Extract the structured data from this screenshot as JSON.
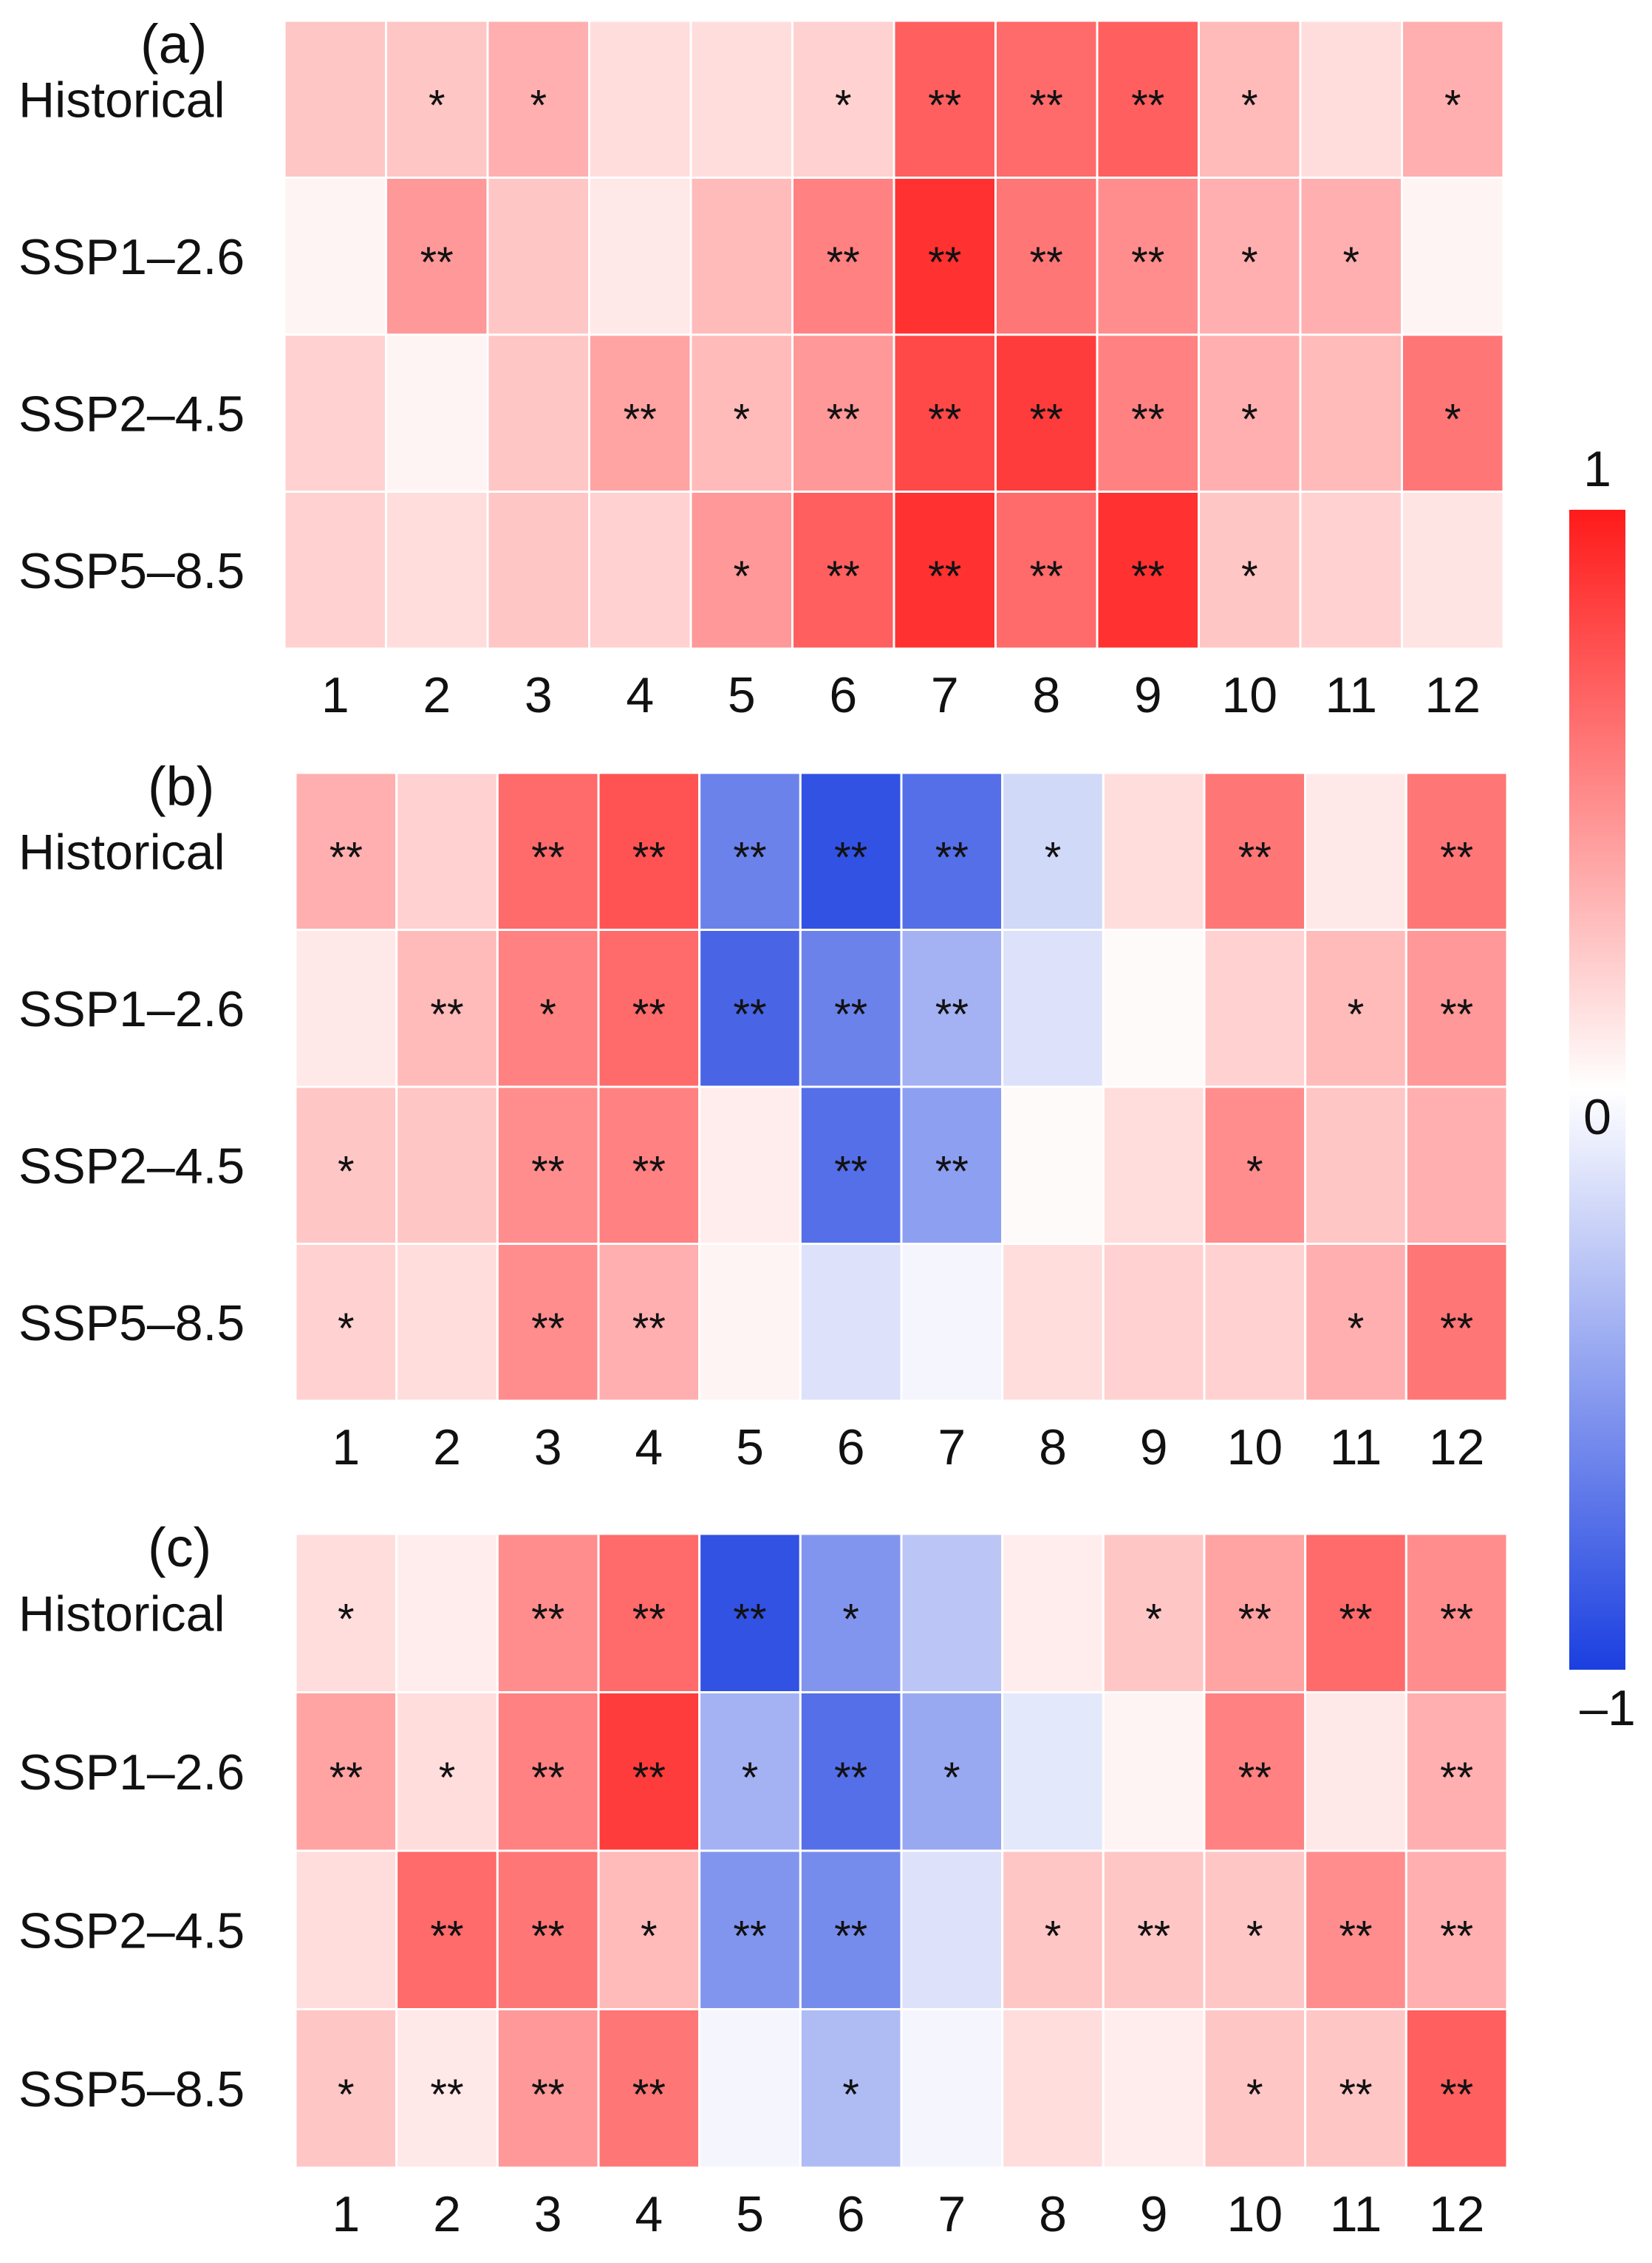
{
  "chart_data": [
    {
      "type": "heatmap",
      "panel_label": "(a)",
      "x": [
        "1",
        "2",
        "3",
        "4",
        "5",
        "6",
        "7",
        "8",
        "9",
        "10",
        "11",
        "12"
      ],
      "y": [
        "Historical",
        "SSP1–2.6",
        "SSP2–4.5",
        "SSP5–8.5"
      ],
      "values": [
        [
          0.25,
          0.25,
          0.35,
          0.15,
          0.15,
          0.2,
          0.7,
          0.65,
          0.7,
          0.3,
          0.15,
          0.35
        ],
        [
          0.05,
          0.45,
          0.25,
          0.1,
          0.3,
          0.55,
          0.9,
          0.6,
          0.5,
          0.35,
          0.35,
          0.05
        ],
        [
          0.2,
          0.05,
          0.25,
          0.4,
          0.3,
          0.45,
          0.8,
          0.85,
          0.55,
          0.35,
          0.3,
          0.6
        ],
        [
          0.2,
          0.15,
          0.25,
          0.2,
          0.45,
          0.7,
          0.9,
          0.65,
          0.9,
          0.25,
          0.2,
          0.12
        ]
      ],
      "significance": [
        [
          "",
          "*",
          "*",
          "",
          "",
          "*",
          "**",
          "**",
          "**",
          "*",
          "",
          "*"
        ],
        [
          "",
          "**",
          "",
          "",
          "",
          "**",
          "**",
          "**",
          "**",
          "*",
          "*",
          ""
        ],
        [
          "",
          "",
          "",
          "**",
          "*",
          "**",
          "**",
          "**",
          "**",
          "*",
          "",
          "*"
        ],
        [
          "",
          "",
          "",
          "",
          "*",
          "**",
          "**",
          "**",
          "**",
          "*",
          "",
          ""
        ]
      ],
      "vmin": -1,
      "vmax": 1
    },
    {
      "type": "heatmap",
      "panel_label": "(b)",
      "x": [
        "1",
        "2",
        "3",
        "4",
        "5",
        "6",
        "7",
        "8",
        "9",
        "10",
        "11",
        "12"
      ],
      "y": [
        "Historical",
        "SSP1–2.6",
        "SSP2–4.5",
        "SSP5–8.5"
      ],
      "values": [
        [
          0.35,
          0.2,
          0.65,
          0.75,
          -0.65,
          -0.9,
          -0.75,
          -0.2,
          0.15,
          0.6,
          0.1,
          0.6
        ],
        [
          0.1,
          0.3,
          0.55,
          0.65,
          -0.8,
          -0.65,
          -0.4,
          -0.15,
          0.02,
          0.2,
          0.3,
          0.45
        ],
        [
          0.25,
          0.25,
          0.5,
          0.55,
          0.08,
          -0.75,
          -0.5,
          0.02,
          0.15,
          0.5,
          0.25,
          0.35
        ],
        [
          0.2,
          0.15,
          0.5,
          0.35,
          0.05,
          -0.15,
          -0.05,
          0.15,
          0.2,
          0.2,
          0.35,
          0.6
        ]
      ],
      "significance": [
        [
          "**",
          "",
          "**",
          "**",
          "**",
          "**",
          "**",
          "*",
          "",
          "**",
          "",
          "**"
        ],
        [
          "",
          "**",
          "*",
          "**",
          "**",
          "**",
          "**",
          "",
          "",
          "",
          "*",
          "**"
        ],
        [
          "*",
          "",
          "**",
          "**",
          "",
          "**",
          "**",
          "",
          "",
          "*",
          "",
          ""
        ],
        [
          "*",
          "",
          "**",
          "**",
          "",
          "",
          "",
          "",
          "",
          "",
          "*",
          "**"
        ]
      ],
      "vmin": -1,
      "vmax": 1
    },
    {
      "type": "heatmap",
      "panel_label": "(c)",
      "x": [
        "1",
        "2",
        "3",
        "4",
        "5",
        "6",
        "7",
        "8",
        "9",
        "10",
        "11",
        "12"
      ],
      "y": [
        "Historical",
        "SSP1–2.6",
        "SSP2–4.5",
        "SSP5–8.5"
      ],
      "values": [
        [
          0.15,
          0.08,
          0.5,
          0.65,
          -0.9,
          -0.55,
          -0.3,
          0.08,
          0.25,
          0.4,
          0.65,
          0.5
        ],
        [
          0.4,
          0.15,
          0.55,
          0.85,
          -0.4,
          -0.75,
          -0.45,
          -0.12,
          0.05,
          0.55,
          0.1,
          0.35
        ],
        [
          0.15,
          0.65,
          0.6,
          0.3,
          -0.55,
          -0.6,
          -0.15,
          0.25,
          0.25,
          0.25,
          0.5,
          0.35
        ],
        [
          0.25,
          0.1,
          0.45,
          0.6,
          -0.05,
          -0.35,
          -0.05,
          0.15,
          0.08,
          0.25,
          0.25,
          0.7
        ]
      ],
      "significance": [
        [
          "*",
          "",
          "**",
          "**",
          "**",
          "*",
          "",
          "",
          "*",
          "**",
          "**",
          "**"
        ],
        [
          "**",
          "*",
          "**",
          "**",
          "*",
          "**",
          "*",
          "",
          "",
          "**",
          "",
          "**"
        ],
        [
          "",
          "**",
          "**",
          "*",
          "**",
          "**",
          "",
          "*",
          "**",
          "*",
          "**",
          "**"
        ],
        [
          "*",
          "**",
          "**",
          "**",
          "",
          "*",
          "",
          "",
          "",
          "*",
          "**",
          "**"
        ]
      ],
      "vmin": -1,
      "vmax": 1
    }
  ],
  "colorbar": {
    "ticks": [
      "1",
      "0",
      "–1"
    ],
    "min_color": "#1b3fe0",
    "mid_color": "#ffffff",
    "max_color": "#ff1a1a"
  }
}
